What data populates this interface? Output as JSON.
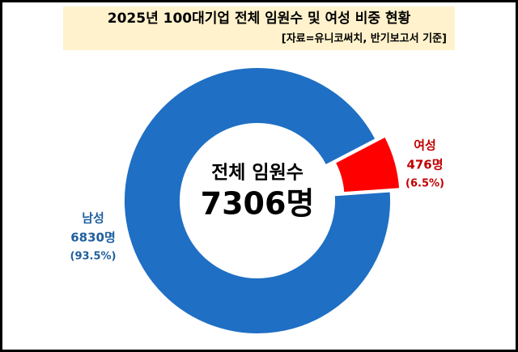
{
  "chart_data": {
    "type": "donut",
    "title": "2025년 100대기업 전체 임원수 및 여성 비중 현황",
    "subtitle": "[자료=유니코써치, 반기보고서 기준]",
    "center_label": "전체 임원수",
    "total": 7306,
    "total_label": "7306명",
    "categories": [
      "남성",
      "여성"
    ],
    "values": [
      6830,
      476
    ],
    "value_labels": [
      "6830명",
      "476명"
    ],
    "percents": [
      93.5,
      6.5
    ],
    "percent_labels": [
      "(93.5%)",
      "(6.5%)"
    ],
    "colors": [
      "#1f6fc4",
      "#ff0000"
    ],
    "label_colors": [
      "#1f5f9f",
      "#c00000"
    ]
  }
}
